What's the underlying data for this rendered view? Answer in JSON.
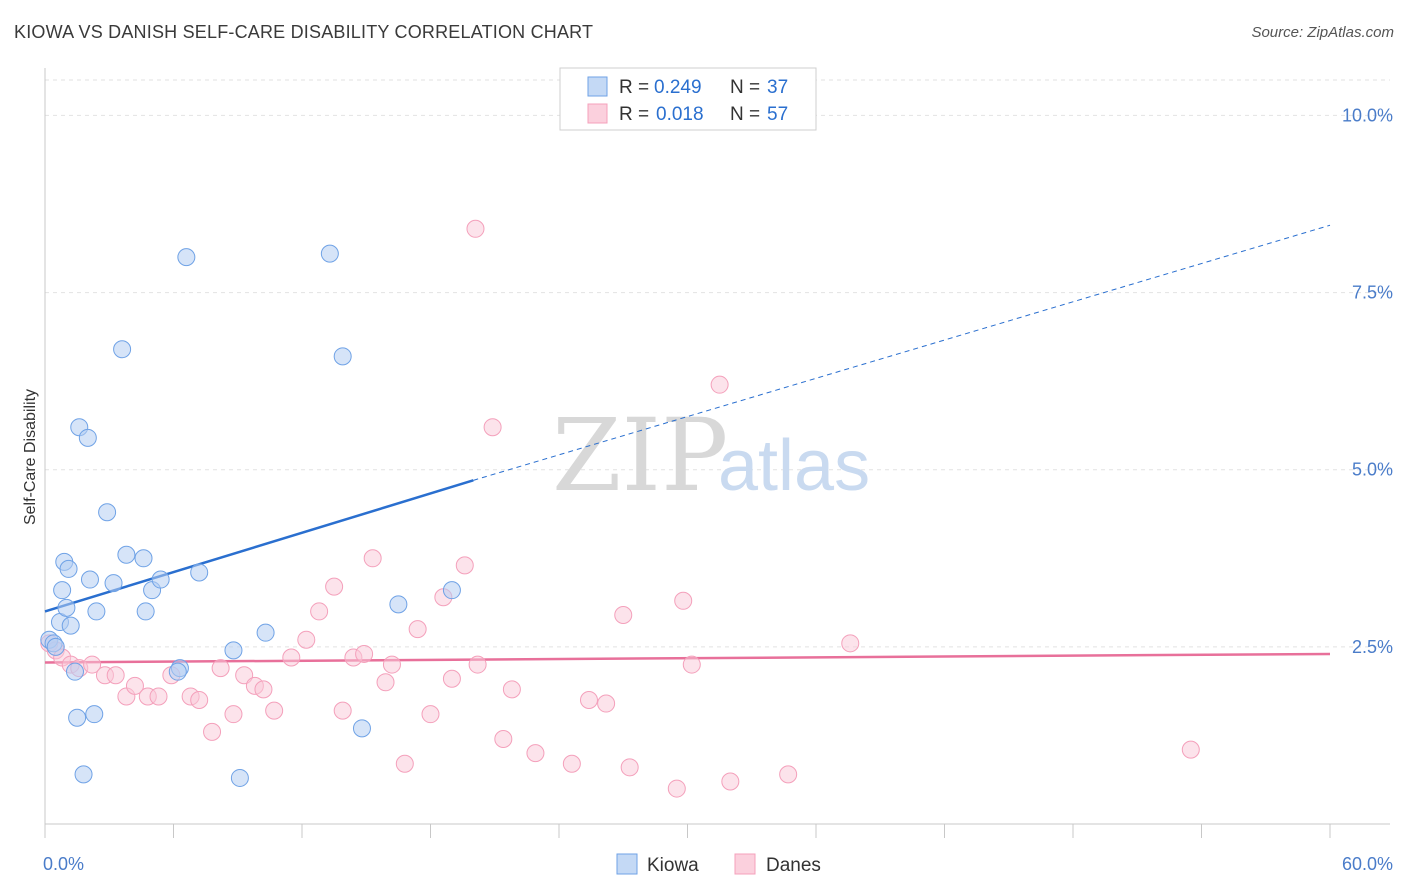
{
  "title": "KIOWA VS DANISH SELF-CARE DISABILITY CORRELATION CHART",
  "source": "Source: ZipAtlas.com",
  "watermark": {
    "zip": "ZIP",
    "atlas": "atlas"
  },
  "colors": {
    "kiowa": "#6fa2e6",
    "kiowa_line": "#2a6fcf",
    "danes": "#f4a0bb",
    "danes_line": "#e8709a",
    "tick": "#4a7cc9"
  },
  "legend": {
    "rows": [
      {
        "r_label": "R =",
        "r_value": "0.249",
        "n_label": "N =",
        "n_value": "37"
      },
      {
        "r_label": "R =",
        "r_value": "0.018",
        "n_label": "N =",
        "n_value": "57"
      }
    ]
  },
  "chart_data": {
    "type": "scatter",
    "title": "KIOWA VS DANISH SELF-CARE DISABILITY CORRELATION CHART",
    "xlabel": "",
    "ylabel": "Self-Care Disability",
    "xlim": [
      0,
      60
    ],
    "ylim": [
      0,
      10.5
    ],
    "x_tick_labels": [
      "0.0%",
      "60.0%"
    ],
    "y_ticks": [
      2.5,
      5.0,
      7.5,
      10.0
    ],
    "y_tick_labels": [
      "2.5%",
      "5.0%",
      "7.5%",
      "10.0%"
    ],
    "grid": true,
    "legend_position": "top-center",
    "series": [
      {
        "name": "Kiowa",
        "points": [
          [
            0.2,
            2.6
          ],
          [
            0.4,
            2.55
          ],
          [
            0.5,
            2.5
          ],
          [
            0.7,
            2.85
          ],
          [
            0.8,
            3.3
          ],
          [
            0.9,
            3.7
          ],
          [
            1.0,
            3.05
          ],
          [
            1.1,
            3.6
          ],
          [
            1.2,
            2.8
          ],
          [
            1.4,
            2.15
          ],
          [
            1.5,
            1.5
          ],
          [
            1.6,
            5.6
          ],
          [
            1.8,
            0.7
          ],
          [
            2.0,
            5.45
          ],
          [
            2.1,
            3.45
          ],
          [
            2.3,
            1.55
          ],
          [
            2.4,
            3.0
          ],
          [
            2.9,
            4.4
          ],
          [
            3.2,
            3.4
          ],
          [
            3.6,
            6.7
          ],
          [
            3.8,
            3.8
          ],
          [
            4.6,
            3.75
          ],
          [
            4.7,
            3.0
          ],
          [
            5.0,
            3.3
          ],
          [
            5.4,
            3.45
          ],
          [
            6.3,
            2.2
          ],
          [
            6.6,
            8.0
          ],
          [
            7.2,
            3.55
          ],
          [
            8.8,
            2.45
          ],
          [
            9.1,
            0.65
          ],
          [
            10.3,
            2.7
          ],
          [
            13.3,
            8.05
          ],
          [
            13.9,
            6.6
          ],
          [
            14.8,
            1.35
          ],
          [
            16.5,
            3.1
          ],
          [
            19.0,
            3.3
          ],
          [
            6.2,
            2.15
          ]
        ],
        "trend": {
          "x": [
            0,
            20
          ],
          "y": [
            3.0,
            4.85
          ],
          "extended_to": [
            60,
            8.45
          ]
        }
      },
      {
        "name": "Danes",
        "points": [
          [
            0.2,
            2.55
          ],
          [
            0.5,
            2.45
          ],
          [
            0.8,
            2.35
          ],
          [
            1.2,
            2.25
          ],
          [
            1.6,
            2.2
          ],
          [
            2.2,
            2.25
          ],
          [
            2.8,
            2.1
          ],
          [
            3.3,
            2.1
          ],
          [
            3.8,
            1.8
          ],
          [
            4.2,
            1.95
          ],
          [
            4.8,
            1.8
          ],
          [
            5.3,
            1.8
          ],
          [
            5.9,
            2.1
          ],
          [
            6.8,
            1.8
          ],
          [
            7.2,
            1.75
          ],
          [
            7.8,
            1.3
          ],
          [
            8.2,
            2.2
          ],
          [
            8.8,
            1.55
          ],
          [
            9.3,
            2.1
          ],
          [
            9.8,
            1.95
          ],
          [
            10.2,
            1.9
          ],
          [
            10.7,
            1.6
          ],
          [
            11.5,
            2.35
          ],
          [
            12.2,
            2.6
          ],
          [
            12.8,
            3.0
          ],
          [
            13.5,
            3.35
          ],
          [
            13.9,
            1.6
          ],
          [
            14.4,
            2.35
          ],
          [
            14.9,
            2.4
          ],
          [
            15.3,
            3.75
          ],
          [
            15.9,
            2.0
          ],
          [
            16.2,
            2.25
          ],
          [
            16.8,
            0.85
          ],
          [
            17.4,
            2.75
          ],
          [
            18.0,
            1.55
          ],
          [
            18.6,
            3.2
          ],
          [
            19.0,
            2.05
          ],
          [
            19.6,
            3.65
          ],
          [
            20.1,
            8.4
          ],
          [
            20.2,
            2.25
          ],
          [
            20.9,
            5.6
          ],
          [
            21.4,
            1.2
          ],
          [
            21.8,
            1.9
          ],
          [
            22.9,
            1.0
          ],
          [
            24.6,
            0.85
          ],
          [
            25.4,
            1.75
          ],
          [
            26.2,
            1.7
          ],
          [
            27.0,
            2.95
          ],
          [
            27.3,
            0.8
          ],
          [
            29.8,
            3.15
          ],
          [
            30.2,
            2.25
          ],
          [
            31.5,
            6.2
          ],
          [
            32.0,
            0.6
          ],
          [
            34.7,
            0.7
          ],
          [
            37.6,
            2.55
          ],
          [
            53.5,
            1.05
          ],
          [
            29.5,
            0.5
          ]
        ],
        "trend": {
          "x": [
            0,
            60
          ],
          "y": [
            2.28,
            2.4
          ]
        }
      }
    ]
  }
}
